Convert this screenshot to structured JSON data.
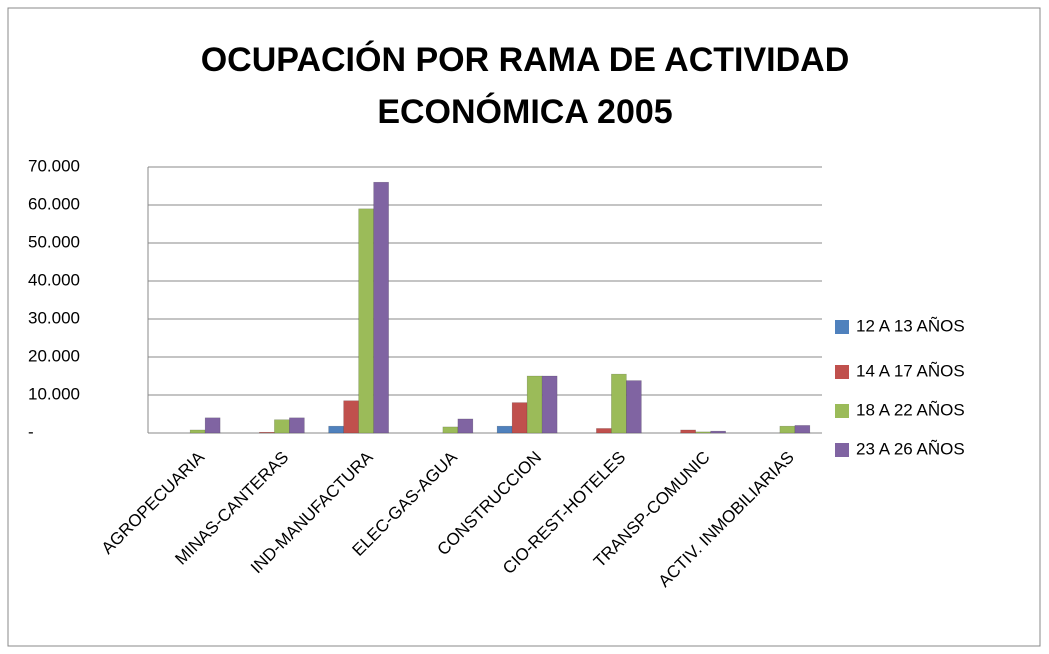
{
  "chart_data": {
    "type": "bar",
    "title": "OCUPACIÓN POR RAMA DE ACTIVIDAD ECONÓMICA 2005",
    "categories": [
      "AGROPECUARIA",
      "MINAS-CANTERAS",
      "IND-MANUFACTURA",
      "ELEC-GAS-AGUA",
      "CONSTRUCCION",
      "CIO-REST-HOTELES",
      "TRANSP-COMUNIC",
      "ACTIV. INMOBILIARIAS"
    ],
    "series": [
      {
        "name": "12 A 13 AÑOS",
        "color": "#4f81bd",
        "values": [
          0,
          0,
          1800,
          0,
          1800,
          0,
          0,
          0
        ]
      },
      {
        "name": "14 A 17 AÑOS",
        "color": "#c0504d",
        "values": [
          0,
          200,
          8500,
          0,
          8000,
          1200,
          800,
          0
        ]
      },
      {
        "name": "18 A 22 AÑOS",
        "color": "#9bbb59",
        "values": [
          800,
          3500,
          59000,
          1600,
          15000,
          15500,
          300,
          1800
        ]
      },
      {
        "name": "23 A 26 AÑOS",
        "color": "#8064a2",
        "values": [
          4000,
          4000,
          66000,
          3700,
          15000,
          13800,
          500,
          2000
        ]
      }
    ],
    "ylim": [
      0,
      70000
    ],
    "yticks": [
      {
        "value": 0,
        "label": "-"
      },
      {
        "value": 10000,
        "label": "10.000"
      },
      {
        "value": 20000,
        "label": "20.000"
      },
      {
        "value": 30000,
        "label": "30.000"
      },
      {
        "value": 40000,
        "label": "40.000"
      },
      {
        "value": 50000,
        "label": "50.000"
      },
      {
        "value": 60000,
        "label": "60.000"
      },
      {
        "value": 70000,
        "label": "70.000"
      }
    ],
    "grid": true,
    "legend": "right"
  }
}
